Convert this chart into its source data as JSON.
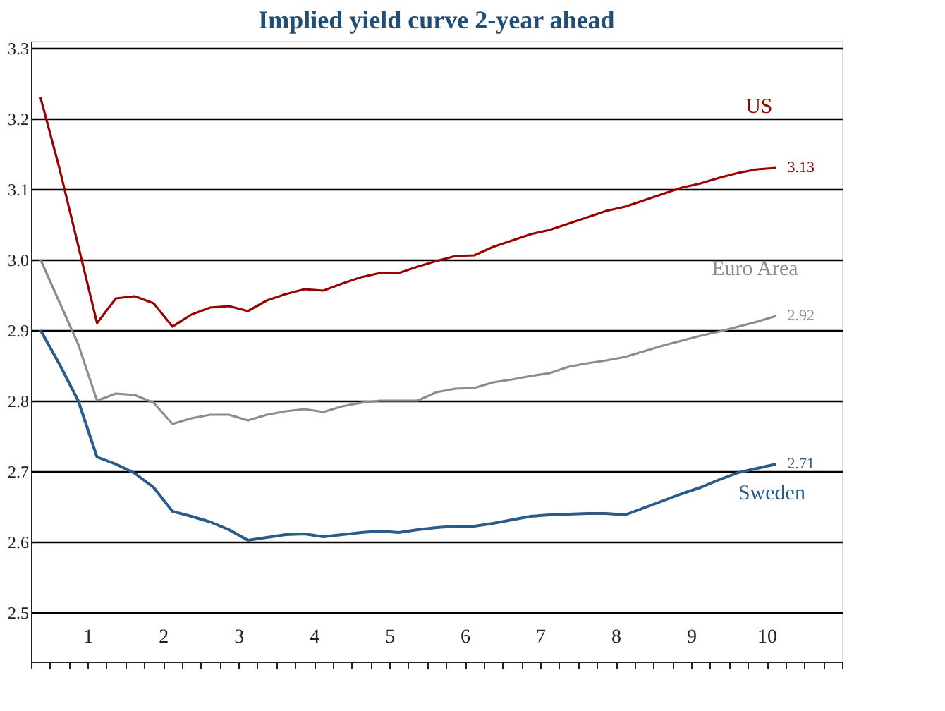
{
  "chart_data": {
    "type": "line",
    "title": "Implied yield curve 2-year ahead",
    "x": [
      0.375,
      0.625,
      0.875,
      1.125,
      1.375,
      1.625,
      1.875,
      2.125,
      2.375,
      2.625,
      2.875,
      3.125,
      3.375,
      3.625,
      3.875,
      4.125,
      4.375,
      4.625,
      4.875,
      5.125,
      5.375,
      5.625,
      5.875,
      6.125,
      6.375,
      6.625,
      6.875,
      7.125,
      7.375,
      7.625,
      7.875,
      8.125,
      8.375,
      8.625,
      8.875,
      9.125,
      9.375,
      9.625,
      9.875,
      10.125
    ],
    "series": [
      {
        "name": "US",
        "color": "#990000",
        "values": [
          3.23,
          3.13,
          3.02,
          2.91,
          2.945,
          2.948,
          2.938,
          2.905,
          2.922,
          2.932,
          2.934,
          2.927,
          2.942,
          2.951,
          2.958,
          2.956,
          2.966,
          2.975,
          2.981,
          2.981,
          2.99,
          2.998,
          3.005,
          3.006,
          3.018,
          3.027,
          3.036,
          3.042,
          3.051,
          3.06,
          3.069,
          3.075,
          3.084,
          3.093,
          3.102,
          3.108,
          3.116,
          3.123,
          3.128,
          3.13
        ],
        "value_labels": [
          null,
          null,
          null,
          null,
          null,
          null,
          null,
          null,
          null,
          null,
          null,
          null,
          null,
          null,
          null,
          null,
          null,
          null,
          null,
          null,
          null,
          null,
          null,
          null,
          null,
          null,
          null,
          null,
          null,
          null,
          null,
          null,
          null,
          null,
          null,
          null,
          null,
          null,
          null,
          "3.13"
        ]
      },
      {
        "name": "Euro Area",
        "color": "#8c8c8c",
        "values": [
          3.0,
          2.94,
          2.88,
          2.8,
          2.81,
          2.808,
          2.797,
          2.767,
          2.775,
          2.78,
          2.78,
          2.772,
          2.78,
          2.785,
          2.788,
          2.784,
          2.792,
          2.797,
          2.8,
          2.8,
          2.8,
          2.812,
          2.817,
          2.818,
          2.826,
          2.83,
          2.835,
          2.839,
          2.848,
          2.853,
          2.857,
          2.862,
          2.87,
          2.878,
          2.885,
          2.892,
          2.898,
          2.905,
          2.912,
          2.92
        ],
        "value_labels": [
          null,
          null,
          null,
          null,
          null,
          null,
          null,
          null,
          null,
          null,
          null,
          null,
          null,
          null,
          null,
          null,
          null,
          null,
          null,
          null,
          null,
          null,
          null,
          null,
          null,
          null,
          null,
          null,
          null,
          null,
          null,
          null,
          null,
          null,
          null,
          null,
          null,
          null,
          null,
          "2.92"
        ]
      },
      {
        "name": "Sweden",
        "color": "#2b5b8a",
        "values": [
          2.9,
          2.852,
          2.8,
          2.72,
          2.71,
          2.697,
          2.677,
          2.643,
          2.636,
          2.628,
          2.617,
          2.602,
          2.606,
          2.61,
          2.611,
          2.607,
          2.61,
          2.613,
          2.615,
          2.613,
          2.617,
          2.62,
          2.622,
          2.622,
          2.626,
          2.631,
          2.636,
          2.638,
          2.639,
          2.64,
          2.64,
          2.638,
          2.648,
          2.658,
          2.668,
          2.677,
          2.688,
          2.698,
          2.704,
          2.71
        ],
        "value_labels": [
          null,
          null,
          null,
          null,
          null,
          null,
          null,
          null,
          null,
          null,
          null,
          null,
          null,
          null,
          null,
          null,
          null,
          null,
          null,
          null,
          null,
          null,
          null,
          null,
          null,
          null,
          null,
          null,
          null,
          null,
          null,
          null,
          null,
          null,
          null,
          null,
          null,
          null,
          null,
          "2.71"
        ]
      }
    ],
    "xlim": [
      0.25,
      11
    ],
    "xticks": [
      {
        "value": 0.25,
        "label": null
      },
      {
        "value": 0.5,
        "label": null
      },
      {
        "value": 0.75,
        "label": null
      },
      1,
      {
        "value": 1.25,
        "label": null
      },
      {
        "value": 1.5,
        "label": null
      },
      {
        "value": 1.75,
        "label": null
      },
      2,
      {
        "value": 2.25,
        "label": null
      },
      {
        "value": 2.5,
        "label": null
      },
      {
        "value": 2.75,
        "label": null
      },
      3,
      {
        "value": 3.25,
        "label": null
      },
      {
        "value": 3.5,
        "label": null
      },
      {
        "value": 3.75,
        "label": null
      },
      4,
      {
        "value": 4.25,
        "label": null
      },
      {
        "value": 4.5,
        "label": null
      },
      {
        "value": 4.75,
        "label": null
      },
      5,
      {
        "value": 5.25,
        "label": null
      },
      {
        "value": 5.5,
        "label": null
      },
      {
        "value": 5.75,
        "label": null
      },
      6,
      {
        "value": 6.25,
        "label": null
      },
      {
        "value": 6.5,
        "label": null
      },
      {
        "value": 6.75,
        "label": null
      },
      7,
      {
        "value": 7.25,
        "label": null
      },
      {
        "value": 7.5,
        "label": null
      },
      {
        "value": 7.75,
        "label": null
      },
      8,
      {
        "value": 8.25,
        "label": null
      },
      {
        "value": 8.5,
        "label": null
      },
      {
        "value": 8.75,
        "label": null
      },
      9,
      {
        "value": 9.25,
        "label": null
      },
      {
        "value": 9.5,
        "label": null
      },
      {
        "value": 9.75,
        "label": null
      },
      10,
      {
        "value": 10.25,
        "label": null
      },
      {
        "value": 10.5,
        "label": null
      },
      {
        "value": 10.75,
        "label": null
      },
      {
        "value": 11,
        "label": null
      }
    ],
    "ylim": [
      2.43,
      3.31
    ],
    "yticks": [
      {
        "value": 2.5,
        "label": "2.5"
      },
      {
        "value": 2.6,
        "label": "2.6"
      },
      {
        "value": 2.7,
        "label": "2.7"
      },
      {
        "value": 2.8,
        "label": "2.8"
      },
      {
        "value": 2.9,
        "label": "2.9"
      },
      {
        "value": 3.0,
        "label": "3.0"
      },
      {
        "value": 3.1,
        "label": "3.1"
      },
      {
        "value": 3.2,
        "label": "3.2"
      },
      {
        "value": 3.3,
        "label": "3.3"
      }
    ],
    "grid": "y",
    "legend": false,
    "marker": "none",
    "line_style": "solid"
  }
}
